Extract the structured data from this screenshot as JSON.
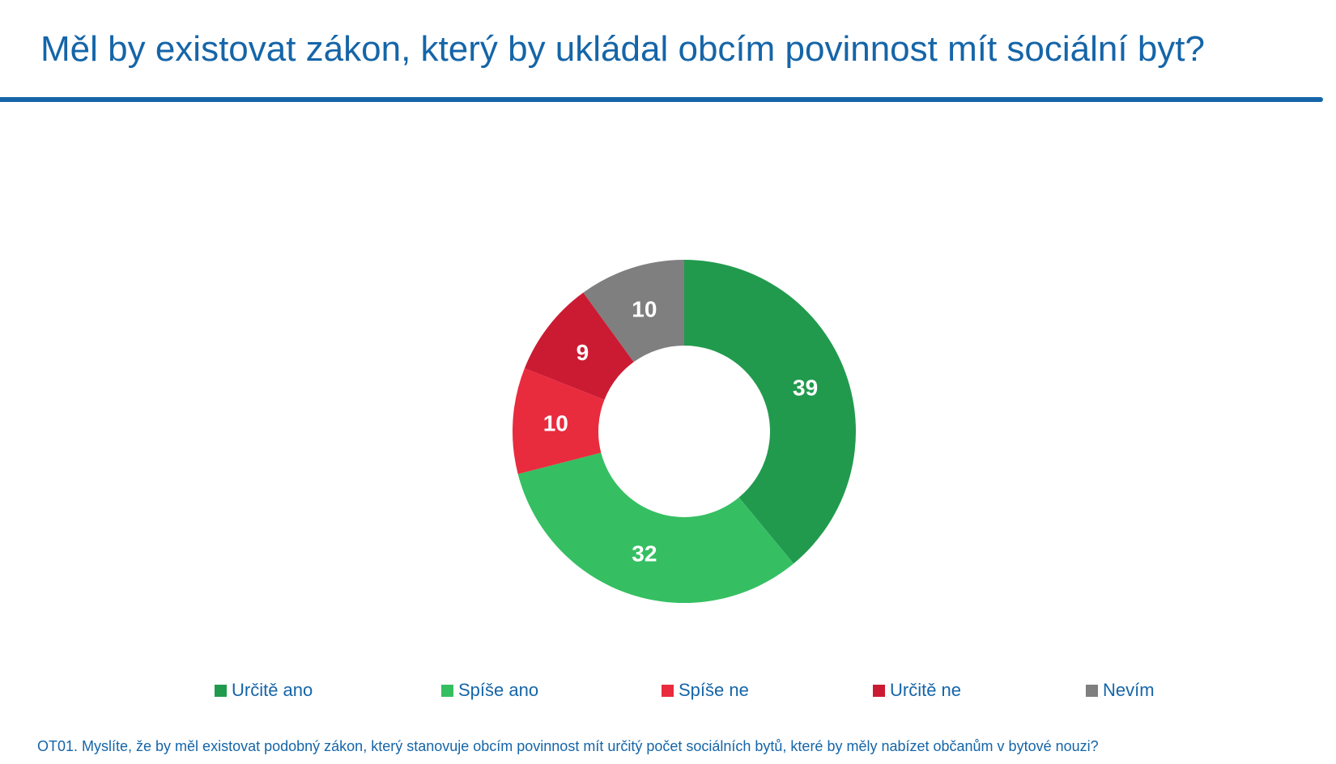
{
  "title": "Měl by existovat zákon, který by ukládal obcím povinnost mít sociální byt?",
  "footnote": "OT01. Myslíte, že by měl existovat podobný zákon, který stanovuje obcím povinnost mít určitý počet sociálních bytů, které by měly nabízet občanům v bytové nouzi?",
  "colors": {
    "accent": "#1565a8",
    "label_text": "#ffffff"
  },
  "chart_data": {
    "type": "pie",
    "subtype": "donut",
    "start": "top, clockwise",
    "legend_position": "bottom",
    "categories": [
      "Určitě ano",
      "Spíše ano",
      "Spíše ne",
      "Určitě ne",
      "Nevím"
    ],
    "values": [
      39,
      32,
      10,
      9,
      10
    ],
    "data_labels": [
      "39",
      "32",
      "10",
      "9",
      "10"
    ],
    "colors": [
      "#229a4e",
      "#35bf62",
      "#e92b3e",
      "#cb1b33",
      "#7f7f7f"
    ]
  }
}
